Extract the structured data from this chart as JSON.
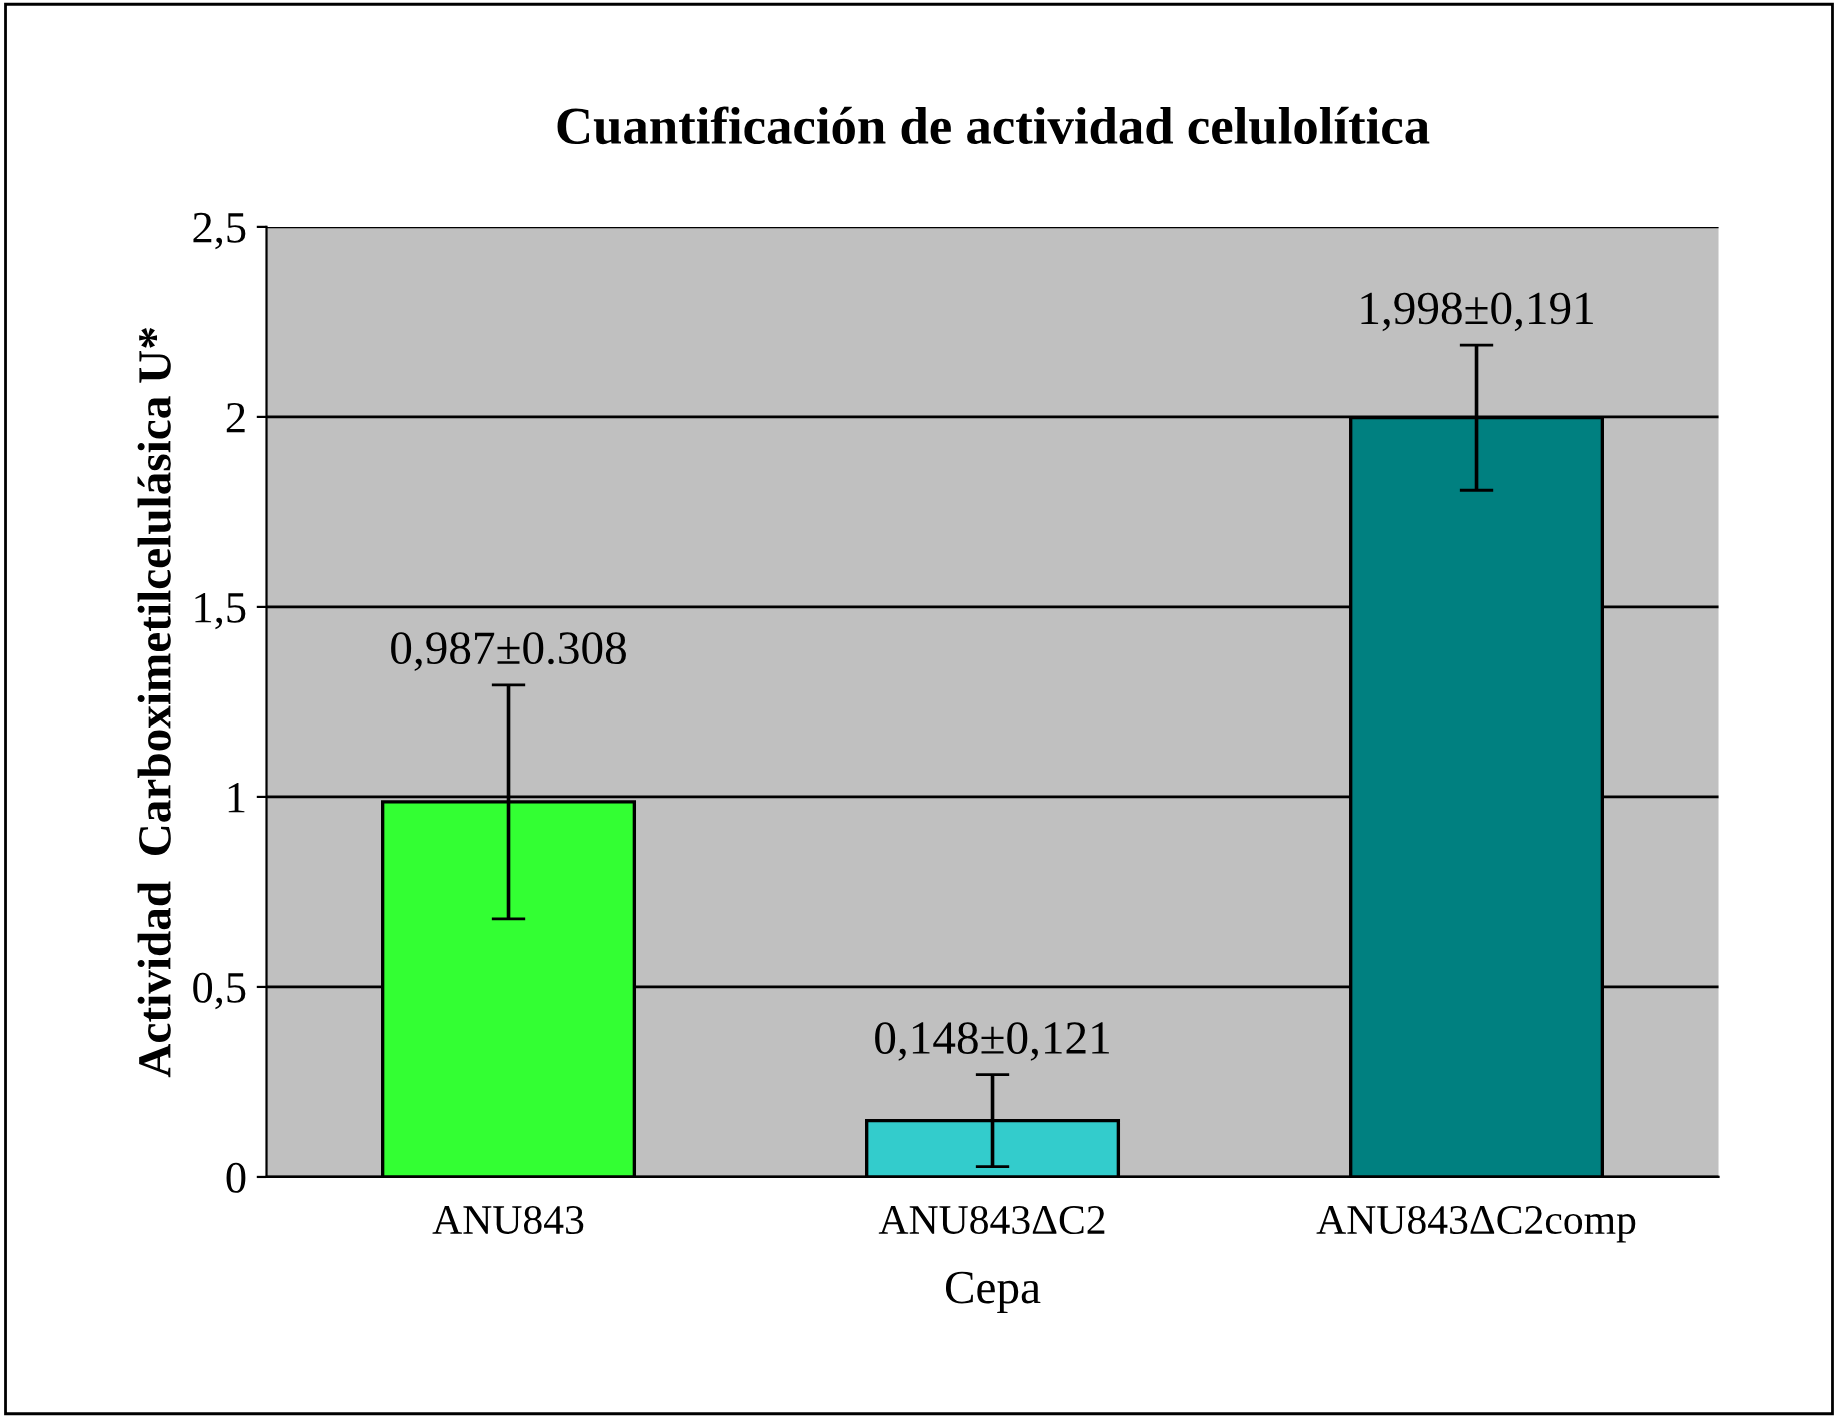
{
  "chart_data": {
    "type": "bar",
    "title": "Cuantificación de actividad celulolítica",
    "xlabel": "Cepa",
    "ylabel": "Actividad  Carboximetilcelulásica U*",
    "categories": [
      "ANU843",
      "ANU843ΔC2",
      "ANU843ΔC2comp"
    ],
    "values": [
      0.987,
      0.148,
      1.998
    ],
    "errors": [
      0.308,
      0.121,
      0.191
    ],
    "value_labels": [
      "0,987±0.308",
      "0,148±0,121",
      "1,998±0,191"
    ],
    "colors": [
      "#33ff33",
      "#33cccc",
      "#008080"
    ],
    "ylim": [
      0,
      2.5
    ],
    "yticks": [
      0,
      {
        "value": 0.5,
        "label": "0,5"
      },
      1,
      {
        "value": 1.5,
        "label": "1,5"
      },
      2,
      {
        "value": 2.5,
        "label": "2,5"
      }
    ],
    "grid": "y"
  }
}
